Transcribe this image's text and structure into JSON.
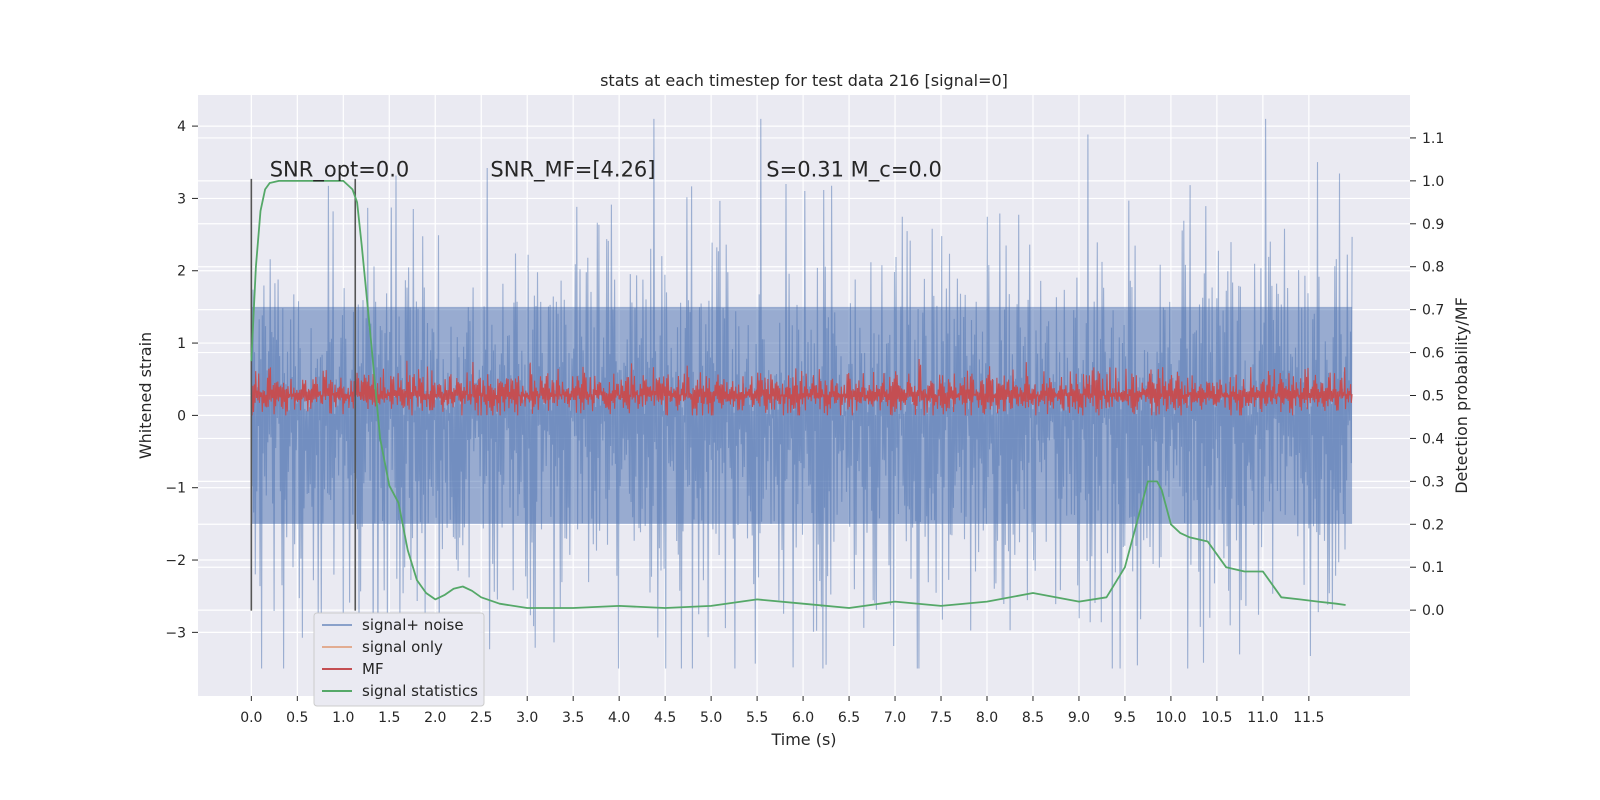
{
  "chart_data": {
    "type": "line",
    "title": "stats at each timestep for test data 216 [signal=0]",
    "xlabel": "Time (s)",
    "ylabel": "Whitened strain",
    "y2label": "Detection probability/MF",
    "xlim": [
      -0.58,
      12.6
    ],
    "ylim": [
      -3.88,
      4.43
    ],
    "y2lim": [
      -0.2,
      1.2
    ],
    "x_ticks": [
      0.0,
      0.5,
      1.0,
      1.5,
      2.0,
      2.5,
      3.0,
      3.5,
      4.0,
      4.5,
      5.0,
      5.5,
      6.0,
      6.5,
      7.0,
      7.5,
      8.0,
      8.5,
      9.0,
      9.5,
      10.0,
      10.5,
      11.0,
      11.5
    ],
    "x_tick_labels": [
      "0.0",
      "0.5",
      "1.0",
      "1.5",
      "2.0",
      "2.5",
      "3.0",
      "3.5",
      "4.0",
      "4.5",
      "5.0",
      "5.5",
      "6.0",
      "6.5",
      "7.0",
      "7.5",
      "8.0",
      "8.5",
      "9.0",
      "9.5",
      "10.0",
      "10.5",
      "11.0",
      "11.5"
    ],
    "y_ticks": [
      -3,
      -2,
      -1,
      0,
      1,
      2,
      3,
      4
    ],
    "y_tick_labels": [
      "−3",
      "−2",
      "−1",
      "0",
      "1",
      "2",
      "3",
      "4"
    ],
    "y2_ticks": [
      0.0,
      0.1,
      0.2,
      0.3,
      0.4,
      0.5,
      0.6,
      0.7,
      0.8,
      0.9,
      1.0,
      1.1
    ],
    "y2_tick_labels": [
      "0.0",
      "0.1",
      "0.2",
      "0.3",
      "0.4",
      "0.5",
      "0.6",
      "0.7",
      "0.8",
      "0.9",
      "1.0",
      "1.1"
    ],
    "grid": true,
    "legend_placement": "lower-left",
    "annotations": [
      {
        "text": "SNR_opt=0.0",
        "x": 0.2,
        "y": 3.3
      },
      {
        "text": "SNR_MF=[4.26]",
        "x": 2.6,
        "y": 3.3
      },
      {
        "text": "S=0.31   M_c=0.0",
        "x": 5.6,
        "y": 3.3
      }
    ],
    "vlines": [
      {
        "x": 0.0,
        "ymin": -2.7,
        "ymax": 3.27
      },
      {
        "x": 1.13,
        "ymin": -2.7,
        "ymax": 3.27
      }
    ],
    "noise": {
      "x_start": 0.0,
      "x_end": 11.97,
      "band_low": -1.5,
      "band_high": 1.5,
      "peak_max": 4.1,
      "peak_min": -3.5
    },
    "series": [
      {
        "name": "signal+ noise",
        "color": "#4c72b0",
        "axis": "left",
        "kind": "noise-band"
      },
      {
        "name": "signal only",
        "color": "#dd8452",
        "axis": "left",
        "kind": "none"
      },
      {
        "name": "MF",
        "color": "#c44e52",
        "axis": "left",
        "kind": "band",
        "low": 0.0,
        "high": 0.6,
        "center": 0.28
      },
      {
        "name": "signal statistics",
        "color": "#55a868",
        "axis": "right",
        "x": [
          0.0,
          0.05,
          0.1,
          0.15,
          0.2,
          0.3,
          0.5,
          1.0,
          1.1,
          1.15,
          1.2,
          1.3,
          1.4,
          1.5,
          1.6,
          1.7,
          1.8,
          1.9,
          2.0,
          2.1,
          2.2,
          2.3,
          2.4,
          2.5,
          2.7,
          3.0,
          3.5,
          4.0,
          4.5,
          5.0,
          5.5,
          6.0,
          6.5,
          7.0,
          7.5,
          8.0,
          8.5,
          9.0,
          9.3,
          9.5,
          9.65,
          9.75,
          9.85,
          9.9,
          10.0,
          10.1,
          10.2,
          10.4,
          10.6,
          10.8,
          11.0,
          11.2,
          11.4,
          11.6,
          11.8,
          11.9
        ],
        "values": [
          0.58,
          0.8,
          0.93,
          0.98,
          0.995,
          1.0,
          1.0,
          1.0,
          0.98,
          0.95,
          0.85,
          0.63,
          0.4,
          0.29,
          0.25,
          0.14,
          0.07,
          0.04,
          0.025,
          0.035,
          0.05,
          0.055,
          0.045,
          0.03,
          0.015,
          0.005,
          0.005,
          0.01,
          0.005,
          0.01,
          0.025,
          0.015,
          0.005,
          0.02,
          0.01,
          0.02,
          0.04,
          0.02,
          0.03,
          0.1,
          0.22,
          0.3,
          0.3,
          0.28,
          0.2,
          0.18,
          0.17,
          0.16,
          0.1,
          0.09,
          0.09,
          0.03,
          0.025,
          0.02,
          0.015,
          0.012
        ]
      }
    ]
  }
}
